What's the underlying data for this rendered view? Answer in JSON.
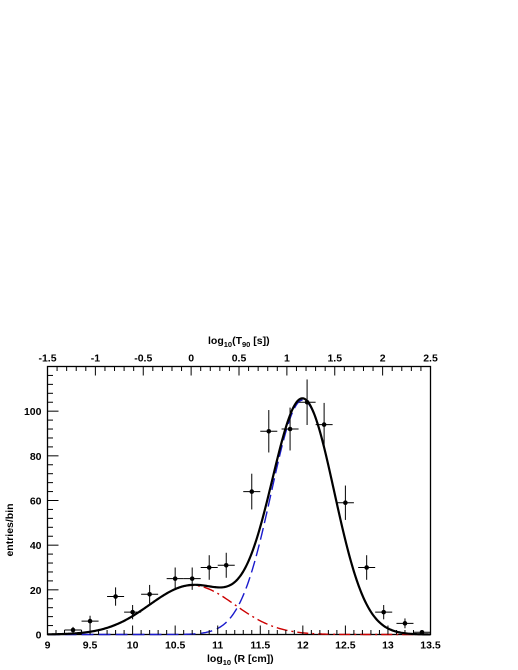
{
  "chart_data": {
    "type": "scatter",
    "title": "",
    "x_axis_bottom": {
      "label_main": "log",
      "label_sub": "10",
      "label_rest": " (R [cm])",
      "range": [
        9,
        13.5
      ],
      "major_ticks": [
        9,
        9.5,
        10,
        10.5,
        11,
        11.5,
        12,
        12.5,
        13,
        13.5
      ],
      "tick_labels": [
        "9",
        "9.5",
        "10",
        "10.5",
        "11",
        "11.5",
        "12",
        "12.5",
        "13",
        "13.5"
      ]
    },
    "x_axis_top": {
      "label_main": "log",
      "label_sub": "10",
      "label_paren_open": "(T",
      "label_sub2": "90",
      "label_rest": " [s])",
      "range": [
        -1.5,
        2.5
      ],
      "major_ticks": [
        -1.5,
        -1,
        -0.5,
        0,
        0.5,
        1,
        1.5,
        2,
        2.5
      ],
      "tick_labels": [
        "-1.5",
        "-1",
        "-0.5",
        "0",
        "0.5",
        "1",
        "1.5",
        "2",
        "2.5"
      ]
    },
    "y_axis": {
      "label": "entries/bin",
      "range": [
        0,
        120
      ],
      "major_ticks": [
        0,
        20,
        40,
        60,
        80,
        100
      ],
      "tick_labels": [
        "0",
        "20",
        "40",
        "60",
        "80",
        "100"
      ]
    },
    "series": [
      {
        "kind": "points",
        "color": "#000000",
        "x_halfwidth": 0.1,
        "points": [
          {
            "x": 9.3,
            "y": 2,
            "err": 1.4
          },
          {
            "x": 9.5,
            "y": 6,
            "err": 2.4
          },
          {
            "x": 9.8,
            "y": 17,
            "err": 4.1
          },
          {
            "x": 10.0,
            "y": 10,
            "err": 3.2
          },
          {
            "x": 10.2,
            "y": 18,
            "err": 4.2
          },
          {
            "x": 10.5,
            "y": 25,
            "err": 5.0
          },
          {
            "x": 10.7,
            "y": 25,
            "err": 5.0
          },
          {
            "x": 10.9,
            "y": 30,
            "err": 5.5
          },
          {
            "x": 11.1,
            "y": 31,
            "err": 5.6
          },
          {
            "x": 11.4,
            "y": 64,
            "err": 8.0
          },
          {
            "x": 11.6,
            "y": 91,
            "err": 9.5
          },
          {
            "x": 11.85,
            "y": 92,
            "err": 9.6
          },
          {
            "x": 12.05,
            "y": 104,
            "err": 10.2
          },
          {
            "x": 12.25,
            "y": 94,
            "err": 9.7
          },
          {
            "x": 12.5,
            "y": 59,
            "err": 7.7
          },
          {
            "x": 12.75,
            "y": 30,
            "err": 5.5
          },
          {
            "x": 12.95,
            "y": 10,
            "err": 3.2
          },
          {
            "x": 13.2,
            "y": 5,
            "err": 2.2
          },
          {
            "x": 13.4,
            "y": 1,
            "err": 1.0
          }
        ]
      },
      {
        "kind": "gaussian",
        "style": "dash-dot",
        "color": "#cc0000",
        "amplitude": 22,
        "mean": 10.7,
        "sigma": 0.5
      },
      {
        "kind": "gaussian",
        "style": "dashed",
        "color": "#1a1acc",
        "amplitude": 105,
        "mean": 12.0,
        "sigma": 0.37
      },
      {
        "kind": "sum",
        "style": "solid",
        "color": "#000000"
      }
    ],
    "grid": false,
    "legend": "none"
  }
}
